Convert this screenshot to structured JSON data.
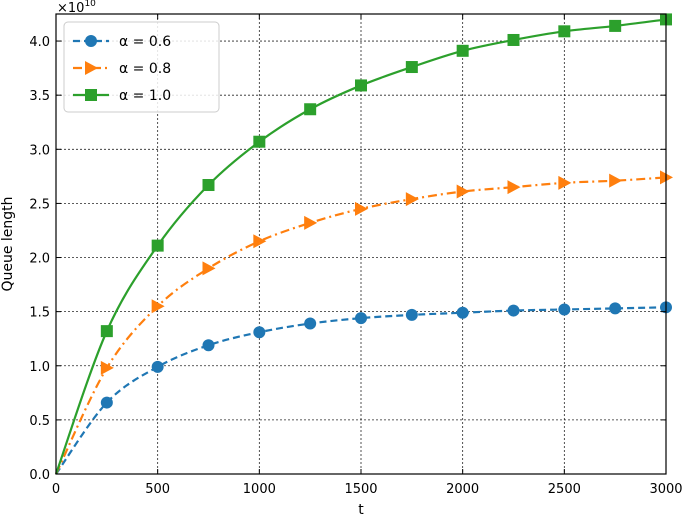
{
  "chart_data": {
    "type": "line",
    "title": "",
    "xlabel": "t",
    "ylabel": "Queue length",
    "y_exponent_label": "×10",
    "y_exponent_power": "10",
    "xlim": [
      0,
      3000
    ],
    "ylim": [
      0,
      4.25
    ],
    "x_ticks": [
      0,
      500,
      1000,
      1500,
      2000,
      2500,
      3000
    ],
    "y_ticks": [
      0.0,
      0.5,
      1.0,
      1.5,
      2.0,
      2.5,
      3.0,
      3.5,
      4.0
    ],
    "grid": true,
    "legend_position": "top-left",
    "series": [
      {
        "name": "α = 0.6",
        "color": "#1f77b4",
        "line_style": "dashed",
        "marker": "circle",
        "x": [
          0,
          250,
          500,
          750,
          1000,
          1250,
          1500,
          1750,
          2000,
          2250,
          2500,
          2750,
          3000
        ],
        "y": [
          0,
          0.66,
          0.99,
          1.19,
          1.31,
          1.39,
          1.44,
          1.47,
          1.49,
          1.51,
          1.52,
          1.53,
          1.54
        ]
      },
      {
        "name": "α = 0.8",
        "color": "#ff7f0e",
        "line_style": "dashdot",
        "marker": "triangle-right",
        "x": [
          0,
          250,
          500,
          750,
          1000,
          1250,
          1500,
          1750,
          2000,
          2250,
          2500,
          2750,
          3000
        ],
        "y": [
          0,
          0.98,
          1.55,
          1.9,
          2.15,
          2.32,
          2.45,
          2.54,
          2.61,
          2.65,
          2.69,
          2.71,
          2.74
        ]
      },
      {
        "name": "α = 1.0",
        "color": "#2ca02c",
        "line_style": "solid",
        "marker": "square",
        "x": [
          0,
          250,
          500,
          750,
          1000,
          1250,
          1500,
          1750,
          2000,
          2250,
          2500,
          2750,
          3000
        ],
        "y": [
          0,
          1.32,
          2.11,
          2.67,
          3.07,
          3.37,
          3.59,
          3.76,
          3.91,
          4.01,
          4.09,
          4.14,
          4.2
        ]
      }
    ]
  }
}
